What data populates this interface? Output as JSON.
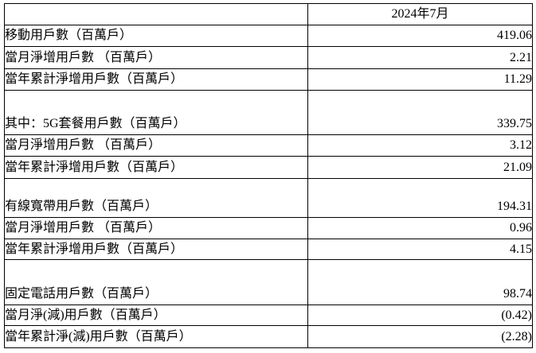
{
  "table": {
    "header": {
      "corner": "",
      "period": "2024年7月"
    },
    "rows": [
      {
        "label": "移動用戶數（百萬戶）",
        "value": "419.06"
      },
      {
        "label": "當月淨增用戶數 （百萬戶）",
        "value": "2.21"
      },
      {
        "label": "當年累計淨增用戶數（百萬戶）",
        "value": "11.29"
      },
      {
        "label": "其中：5G套餐用戶數（百萬戶）",
        "value": "339.75"
      },
      {
        "label": "當月淨增用戶數 （百萬戶）",
        "value": "3.12"
      },
      {
        "label": "當年累計淨增用戶數（百萬戶）",
        "value": "21.09"
      },
      {
        "label": "有線寬帶用戶數（百萬戶）",
        "value": "194.31"
      },
      {
        "label": "當月淨增用戶數 （百萬戶）",
        "value": "0.96"
      },
      {
        "label": "當年累計淨增用戶數（百萬戶）",
        "value": "4.15"
      },
      {
        "label": "固定電話用戶數（百萬戶）",
        "value": "98.74"
      },
      {
        "label": "當月淨(減)用戶數（百萬戶）",
        "value": "(0.42)"
      },
      {
        "label": "當年累計淨(減)用戶數（百萬戶）",
        "value": "(2.28)"
      }
    ]
  },
  "chart_data": {
    "type": "table",
    "columns": [
      "",
      "2024年7月"
    ],
    "rows": [
      [
        "移動用戶數（百萬戶）",
        "419.06"
      ],
      [
        "當月淨增用戶數 （百萬戶）",
        "2.21"
      ],
      [
        "當年累計淨增用戶數（百萬戶）",
        "11.29"
      ],
      [
        "其中：5G套餐用戶數（百萬戶）",
        "339.75"
      ],
      [
        "當月淨增用戶數 （百萬戶）",
        "3.12"
      ],
      [
        "當年累計淨增用戶數（百萬戶）",
        "21.09"
      ],
      [
        "有線寬帶用戶數（百萬戶）",
        "194.31"
      ],
      [
        "當月淨增用戶數 （百萬戶）",
        "0.96"
      ],
      [
        "當年累計淨增用戶數（百萬戶）",
        "4.15"
      ],
      [
        "固定電話用戶數（百萬戶）",
        "98.74"
      ],
      [
        "當月淨(減)用戶數（百萬戶）",
        "(0.42)"
      ],
      [
        "當年累計淨(減)用戶數（百萬戶）",
        "(2.28)"
      ]
    ]
  },
  "colors": {
    "border": "#000000",
    "text": "#000000",
    "background": "#ffffff"
  }
}
